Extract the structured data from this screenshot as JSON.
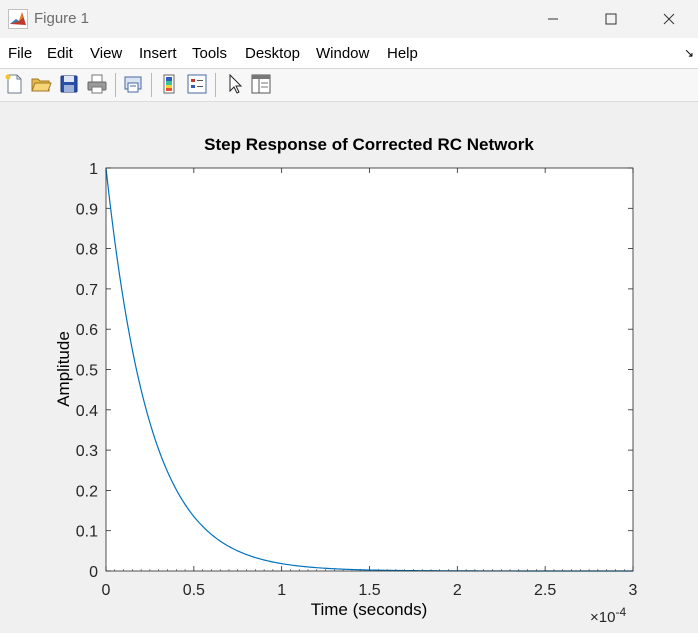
{
  "window": {
    "title": "Figure 1"
  },
  "menu": {
    "items": [
      "File",
      "Edit",
      "View",
      "Insert",
      "Tools",
      "Desktop",
      "Window",
      "Help"
    ]
  },
  "toolbar": {
    "icons": [
      "new-figure-icon",
      "open-file-icon",
      "save-icon",
      "print-icon",
      "link-plot-icon",
      "insert-colorbar-icon",
      "insert-legend-icon",
      "edit-plot-pointer-icon",
      "property-editor-icon"
    ]
  },
  "chart_data": {
    "type": "line",
    "title": "Step Response of Corrected RC Network",
    "xlabel": "Time (seconds)",
    "ylabel": "Amplitude",
    "xlim": [
      0,
      0.0003
    ],
    "ylim": [
      0,
      1
    ],
    "x_exponent_label": "×10",
    "x_exponent_power": "-4",
    "x_tick_labels": [
      "0",
      "0.5",
      "1",
      "1.5",
      "2",
      "2.5",
      "3"
    ],
    "y_tick_labels": [
      "0",
      "0.1",
      "0.2",
      "0.3",
      "0.4",
      "0.5",
      "0.6",
      "0.7",
      "0.8",
      "0.9",
      "1"
    ],
    "grid": false,
    "series": [
      {
        "color": "#0072bd",
        "time_constant": 2.5e-05,
        "x": [
          0,
          1e-05,
          2e-05,
          3e-05,
          4e-05,
          5e-05,
          6e-05,
          7e-05,
          8e-05,
          9e-05,
          0.0001,
          0.00012,
          0.00014,
          0.00016,
          0.00018,
          0.0002,
          0.00025,
          0.0003
        ],
        "values": [
          1,
          0.67,
          0.449,
          0.301,
          0.202,
          0.135,
          0.091,
          0.061,
          0.041,
          0.027,
          0.018,
          0.008,
          0.004,
          0.002,
          0.001,
          0.0003,
          5e-05,
          1e-05
        ]
      }
    ]
  }
}
